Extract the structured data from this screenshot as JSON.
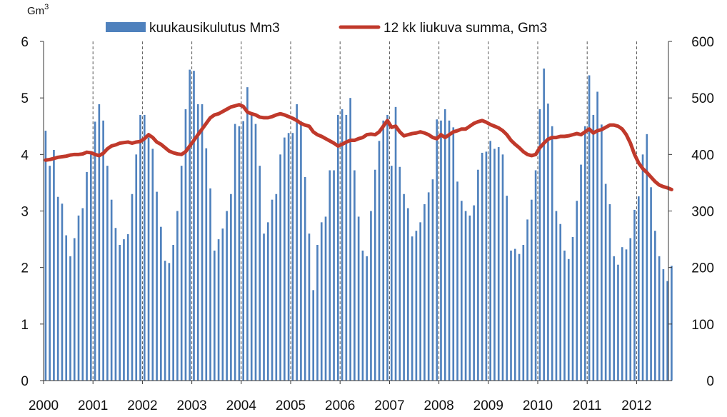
{
  "chart_data": {
    "type": "bar+line",
    "title": "",
    "y_left_unit": "Gm",
    "y_left_unit_sup": "3",
    "y_left_range": [
      0,
      6
    ],
    "y_left_ticks": [
      "0",
      "1",
      "2",
      "3",
      "4",
      "5",
      "6"
    ],
    "y_right_range": [
      0,
      600
    ],
    "y_right_ticks": [
      "0",
      "100",
      "200",
      "300",
      "400",
      "500",
      "600"
    ],
    "x_tick_labels": [
      "2000",
      "2001",
      "2002",
      "2003",
      "2004",
      "2005",
      "2006",
      "2007",
      "2008",
      "2009",
      "2010",
      "2011",
      "2012"
    ],
    "x_months_start": "2000-01",
    "vertical_gridlines": "dashed, at each January",
    "legend_position": "top",
    "series": [
      {
        "name": "kuukausikulutus Mm3",
        "type": "bar",
        "axis": "right",
        "color": "#4f81bd",
        "values": [
          442,
          380,
          408,
          325,
          313,
          257,
          220,
          252,
          292,
          305,
          369,
          400,
          458,
          489,
          460,
          380,
          320,
          270,
          240,
          250,
          259,
          330,
          400,
          470,
          470,
          430,
          410,
          334,
          272,
          212,
          208,
          240,
          300,
          380,
          480,
          550,
          548,
          489,
          489,
          411,
          340,
          230,
          250,
          269,
          300,
          330,
          454,
          450,
          459,
          519,
          470,
          454,
          380,
          260,
          280,
          320,
          330,
          400,
          430,
          438,
          438,
          489,
          459,
          360,
          260,
          160,
          240,
          280,
          290,
          372,
          372,
          470,
          480,
          470,
          500,
          372,
          290,
          230,
          220,
          300,
          373,
          424,
          460,
          470,
          380,
          484,
          378,
          330,
          305,
          255,
          265,
          280,
          312,
          333,
          356,
          462,
          460,
          480,
          460,
          448,
          352,
          318,
          300,
          292,
          310,
          373,
          403,
          405,
          424,
          410,
          413,
          400,
          327,
          230,
          233,
          224,
          240,
          285,
          320,
          372,
          480,
          552,
          490,
          450,
          300,
          277,
          230,
          215,
          254,
          318,
          382,
          450,
          540,
          470,
          511,
          453,
          348,
          312,
          220,
          205,
          236,
          232,
          252,
          302,
          326,
          400,
          436,
          342,
          265,
          220,
          197,
          176,
          203
        ]
      },
      {
        "name": "12 kk liukuva summa,  Gm3",
        "type": "line",
        "axis": "left",
        "color": "#c0392b",
        "values": [
          3.9,
          3.91,
          3.93,
          3.95,
          3.96,
          3.97,
          3.99,
          4.0,
          4.0,
          4.01,
          4.04,
          4.03,
          4.0,
          3.98,
          4.02,
          4.1,
          4.15,
          4.17,
          4.2,
          4.21,
          4.22,
          4.2,
          4.22,
          4.23,
          4.28,
          4.35,
          4.3,
          4.22,
          4.18,
          4.12,
          4.06,
          4.03,
          4.01,
          4.0,
          4.05,
          4.15,
          4.25,
          4.35,
          4.45,
          4.55,
          4.65,
          4.7,
          4.72,
          4.76,
          4.8,
          4.84,
          4.86,
          4.88,
          4.85,
          4.75,
          4.72,
          4.7,
          4.66,
          4.65,
          4.65,
          4.67,
          4.7,
          4.72,
          4.7,
          4.67,
          4.64,
          4.6,
          4.55,
          4.52,
          4.5,
          4.4,
          4.35,
          4.32,
          4.28,
          4.24,
          4.2,
          4.15,
          4.18,
          4.22,
          4.25,
          4.25,
          4.28,
          4.3,
          4.35,
          4.36,
          4.35,
          4.4,
          4.5,
          4.6,
          4.48,
          4.5,
          4.4,
          4.33,
          4.35,
          4.37,
          4.38,
          4.4,
          4.38,
          4.35,
          4.3,
          4.28,
          4.35,
          4.3,
          4.35,
          4.4,
          4.42,
          4.45,
          4.45,
          4.5,
          4.55,
          4.58,
          4.6,
          4.57,
          4.53,
          4.5,
          4.47,
          4.42,
          4.35,
          4.25,
          4.18,
          4.12,
          4.05,
          4.0,
          3.98,
          4.0,
          4.12,
          4.2,
          4.27,
          4.3,
          4.3,
          4.32,
          4.32,
          4.33,
          4.35,
          4.37,
          4.35,
          4.4,
          4.45,
          4.38,
          4.42,
          4.44,
          4.48,
          4.52,
          4.52,
          4.5,
          4.45,
          4.35,
          4.2,
          4.0,
          3.85,
          3.75,
          3.68,
          3.6,
          3.52,
          3.46,
          3.43,
          3.41,
          3.38
        ]
      }
    ]
  }
}
